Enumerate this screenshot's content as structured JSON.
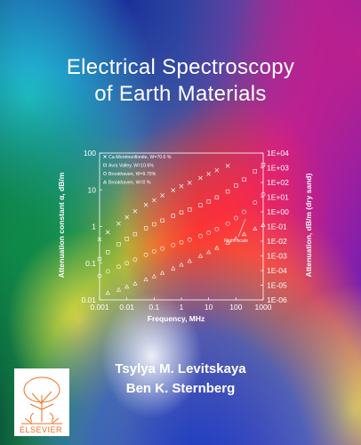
{
  "book": {
    "title_line1": "Electrical Spectroscopy",
    "title_line2": "of Earth Materials",
    "author1": "Tsylya M. Levitskaya",
    "author2": "Ben K. Sternberg",
    "publisher": "ELSEVIER"
  },
  "chart_data": {
    "type": "scatter",
    "title": "",
    "xlabel": "Frequency, MHz",
    "ylabel": "Attenuation constant α, dB/m",
    "ylabel_right": "Attenuation, dB/m (dry sand)",
    "xscale": "log",
    "yscale": "log",
    "xlim": [
      0.001,
      1000
    ],
    "ylim": [
      0.01,
      100
    ],
    "ylim_right": [
      1e-06,
      10000
    ],
    "x_ticks": [
      "0.001",
      "0.01",
      "0.1",
      "1",
      "10",
      "100",
      "1000"
    ],
    "y_ticks": [
      "0.01",
      "0.1",
      "1",
      "10",
      "100"
    ],
    "y_ticks_right": [
      "1E-06",
      "1E-05",
      "1E-04",
      "1E-03",
      "1E-02",
      "1E-01",
      "1E+00",
      "1E+01",
      "1E+02",
      "1E+03",
      "1E+04"
    ],
    "legend_position": "top-left",
    "annotation": "Right scale",
    "series": [
      {
        "name": "Ca-Montmorillonite, W=70.6 %",
        "marker": "x",
        "x": [
          0.001,
          0.002,
          0.005,
          0.01,
          0.02,
          0.05,
          0.1,
          0.2,
          0.5,
          1,
          2,
          5,
          10,
          20,
          50
        ],
        "y": [
          0.45,
          0.7,
          1.2,
          1.8,
          2.6,
          3.9,
          5.2,
          7,
          9.7,
          12.5,
          15.5,
          21,
          27,
          34,
          45
        ]
      },
      {
        "name": "Avra Valley, W=10.6%",
        "marker": "square",
        "x": [
          0.001,
          0.002,
          0.005,
          0.01,
          0.02,
          0.05,
          0.1,
          0.2,
          0.5,
          1,
          2,
          5,
          10,
          20,
          50,
          100,
          200,
          500,
          1000
        ],
        "y": [
          0.13,
          0.2,
          0.33,
          0.46,
          0.62,
          0.9,
          1.15,
          1.45,
          1.95,
          2.4,
          2.9,
          3.8,
          4.8,
          6.2,
          9,
          13,
          19,
          32,
          48
        ]
      },
      {
        "name": "Brookhaven, W=9.75%",
        "marker": "circle",
        "x": [
          0.001,
          0.002,
          0.005,
          0.01,
          0.02,
          0.05,
          0.1,
          0.2,
          0.5,
          1,
          2,
          5,
          10,
          20,
          50,
          100,
          200,
          500,
          1000
        ],
        "y": [
          0.045,
          0.06,
          0.08,
          0.1,
          0.125,
          0.17,
          0.21,
          0.25,
          0.31,
          0.37,
          0.44,
          0.55,
          0.68,
          0.85,
          1.2,
          1.7,
          2.5,
          4.5,
          7.5
        ]
      },
      {
        "name": "Brookhaven, W=0 %",
        "marker": "triangle",
        "axis": "right",
        "x": [
          0.002,
          0.005,
          0.01,
          0.02,
          0.05,
          0.1,
          0.2,
          0.5,
          1,
          2,
          5,
          10,
          20,
          50,
          100,
          200,
          500,
          1000
        ],
        "y": [
          3e-06,
          5e-06,
          8e-06,
          1.3e-05,
          2.5e-05,
          4e-05,
          7e-05,
          0.00014,
          0.00025,
          0.00045,
          0.001,
          0.0018,
          0.0035,
          0.008,
          0.015,
          0.03,
          0.07,
          0.13
        ]
      }
    ]
  }
}
